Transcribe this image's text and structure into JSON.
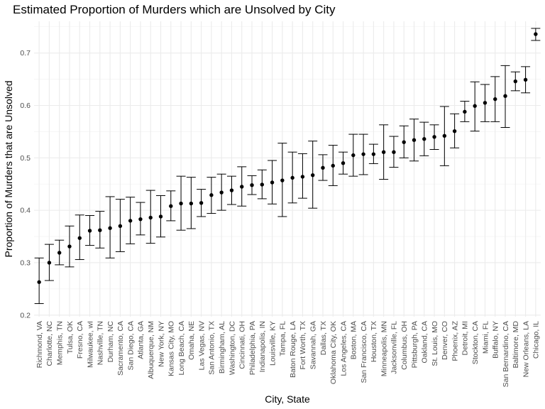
{
  "chart_data": {
    "type": "scatter",
    "title": "Estimated Proportion of Murders which are Unsolved by City",
    "xlabel": "City, State",
    "ylabel": "Proportion of Murders that are Unsolved",
    "ylim": [
      0.2,
      0.75
    ],
    "yticks": [
      0.2,
      0.3,
      0.4,
      0.5,
      0.6,
      0.7
    ],
    "ytick_labels": [
      "0.2",
      "0.3",
      "0.4",
      "0.5",
      "0.6",
      "0.7"
    ],
    "grid": true,
    "error_bars": true,
    "categories": [
      "Richmond, VA",
      "Charlotte, NC",
      "Memphis, TN",
      "Tulsa, OK",
      "Fresno, CA",
      "Milwaukee, wI",
      "Nashville, TN",
      "Durham, NC",
      "Sacramento, CA",
      "San Diego, CA",
      "Atlanta, GA",
      "Albuquerque, NM",
      "New York, NY",
      "Kansas City, MO",
      "Long Beach, CA",
      "Omaha, NE",
      "Las Vegas, NV",
      "San Antonio, TX",
      "Birmingham, AL",
      "Washington, DC",
      "Cincinnati, OH",
      "Philadelphia, PA",
      "Indianapolis, IN",
      "Louisville, KY",
      "Tampa, FL",
      "Baton Rouge, LA",
      "Fort Worth, TX",
      "Savannah, GA",
      "Dallas, TX",
      "Oklahoma City, OK",
      "Los Angeles, CA",
      "Boston, MA",
      "San Francisco, CA",
      "Houston, TX",
      "Minneapolis, MN",
      "Jacksonville, FL",
      "Columbus, OH",
      "Pittsburgh, PA",
      "Oakland, CA",
      "St. Louis, MO",
      "Denver, CO",
      "Phoenix, AZ",
      "Detroit, MI",
      "Stockton, CA",
      "Miami, FL",
      "Buffalo, NY",
      "San Bernardino, CA",
      "Baltimore, MD",
      "New Orleans, LA",
      "Chicago, IL"
    ],
    "estimate": [
      0.263,
      0.3,
      0.319,
      0.331,
      0.347,
      0.361,
      0.362,
      0.366,
      0.37,
      0.38,
      0.383,
      0.386,
      0.388,
      0.408,
      0.413,
      0.413,
      0.414,
      0.429,
      0.434,
      0.438,
      0.445,
      0.448,
      0.449,
      0.453,
      0.457,
      0.462,
      0.464,
      0.467,
      0.481,
      0.485,
      0.49,
      0.505,
      0.507,
      0.507,
      0.511,
      0.511,
      0.53,
      0.534,
      0.536,
      0.54,
      0.542,
      0.551,
      0.588,
      0.599,
      0.605,
      0.612,
      0.618,
      0.646,
      0.649,
      0.736
    ],
    "lower": [
      0.222,
      0.266,
      0.296,
      0.292,
      0.306,
      0.333,
      0.328,
      0.309,
      0.321,
      0.336,
      0.353,
      0.337,
      0.349,
      0.38,
      0.362,
      0.365,
      0.388,
      0.394,
      0.4,
      0.411,
      0.408,
      0.43,
      0.422,
      0.412,
      0.388,
      0.414,
      0.423,
      0.404,
      0.457,
      0.447,
      0.469,
      0.465,
      0.468,
      0.489,
      0.459,
      0.482,
      0.5,
      0.494,
      0.504,
      0.516,
      0.485,
      0.519,
      0.569,
      0.551,
      0.569,
      0.569,
      0.558,
      0.628,
      0.624,
      0.724
    ],
    "upper": [
      0.309,
      0.335,
      0.343,
      0.37,
      0.391,
      0.39,
      0.398,
      0.426,
      0.421,
      0.425,
      0.415,
      0.438,
      0.428,
      0.437,
      0.465,
      0.463,
      0.44,
      0.463,
      0.469,
      0.465,
      0.483,
      0.466,
      0.477,
      0.495,
      0.528,
      0.511,
      0.508,
      0.532,
      0.506,
      0.524,
      0.511,
      0.545,
      0.545,
      0.526,
      0.563,
      0.541,
      0.561,
      0.574,
      0.568,
      0.563,
      0.598,
      0.584,
      0.608,
      0.645,
      0.64,
      0.655,
      0.676,
      0.664,
      0.674,
      0.747
    ]
  }
}
